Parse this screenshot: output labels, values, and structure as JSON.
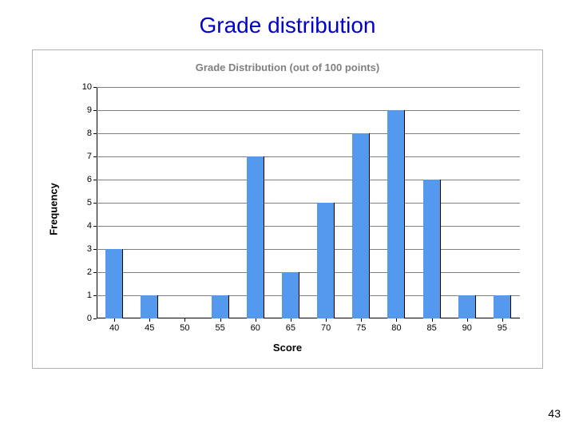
{
  "page": {
    "title": "Grade distribution",
    "title_color": "#0000cc",
    "title_fontsize": 28,
    "page_number": "43"
  },
  "chart": {
    "type": "bar",
    "title": "Grade Distribution (out of 100 points)",
    "title_color": "#808080",
    "title_fontsize": 13,
    "xlabel": "Score",
    "ylabel": "Frequency",
    "label_fontsize": 13,
    "categories": [
      "40",
      "45",
      "50",
      "55",
      "60",
      "65",
      "70",
      "75",
      "80",
      "85",
      "90",
      "95"
    ],
    "values": [
      3,
      1,
      0,
      1,
      7,
      2,
      5,
      8,
      9,
      6,
      1,
      1
    ],
    "bar_color": "#5599ee",
    "bar_border_color": "#000000",
    "bar_width_ratio": 0.5,
    "ylim": [
      0,
      10
    ],
    "ytick_step": 1,
    "yticks": [
      "0",
      "1",
      "2",
      "3",
      "4",
      "5",
      "6",
      "7",
      "8",
      "9",
      "10"
    ],
    "grid_color": "#808080",
    "background_color": "#ffffff",
    "axis_color": "#000000",
    "tick_fontsize": 11
  }
}
